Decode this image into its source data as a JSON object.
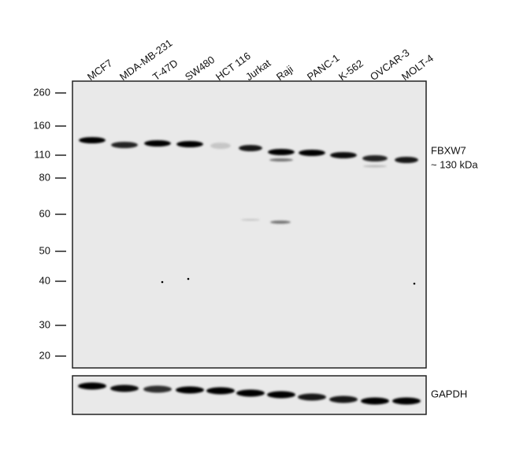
{
  "lanes": [
    "MCF7",
    "MDA-MB-231",
    "T-47D",
    "SW480",
    "HCT 116",
    "Jurkat",
    "Raji",
    "PANC-1",
    "K-562",
    "OVCAR-3",
    "MOLT-4"
  ],
  "markers": [
    260,
    160,
    110,
    80,
    60,
    50,
    40,
    30,
    20
  ],
  "target": {
    "name": "FBXW7",
    "size": "~ 130 kDa"
  },
  "loading_control": "GAPDH"
}
